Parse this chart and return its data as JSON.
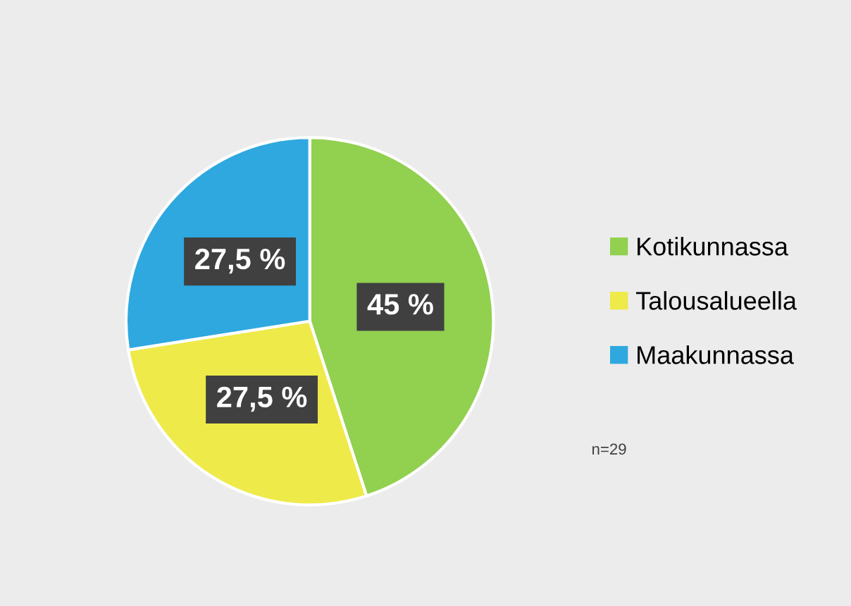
{
  "chart_data": {
    "type": "pie",
    "categories": [
      "Kotikunnassa",
      "Talousalueella",
      "Maakunnassa"
    ],
    "values": [
      45,
      27.5,
      27.5
    ],
    "value_labels": [
      "45 %",
      "27,5 %",
      "27,5 %"
    ],
    "colors": [
      "#92d050",
      "#eeea4a",
      "#2ea8df"
    ],
    "legend": "right",
    "annotations": [
      "n=29"
    ]
  }
}
